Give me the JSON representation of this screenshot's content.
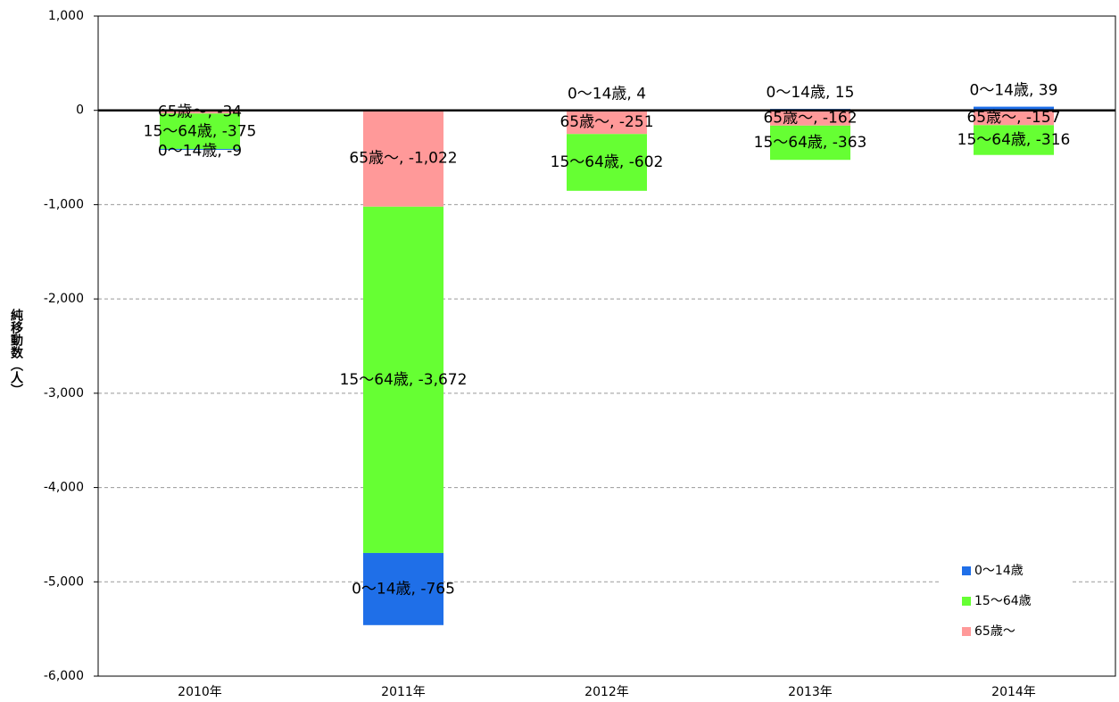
{
  "chart_data": {
    "type": "bar",
    "stacked": true,
    "y_label": "純移動数（人）",
    "categories": [
      "2010年",
      "2011年",
      "2012年",
      "2013年",
      "2014年"
    ],
    "series": [
      {
        "name": "0～14歳",
        "color": "#1f6fe8",
        "values": [
          -9,
          -765,
          4,
          15,
          39
        ],
        "value_labels": [
          "0～14歳, -9",
          "0～14歳, -765",
          "0～14歳, 4",
          "0～14歳, 15",
          "0～14歳, 39"
        ]
      },
      {
        "name": "15～64歳",
        "color": "#66ff33",
        "values": [
          -375,
          -3672,
          -602,
          -363,
          -316
        ],
        "value_labels": [
          "15～64歳, -375",
          "15～64歳, -3,672",
          "15～64歳, -602",
          "15～64歳, -363",
          "15～64歳, -316"
        ]
      },
      {
        "name": "65歳～",
        "color": "#ff9999",
        "values": [
          -34,
          -1022,
          -251,
          -162,
          -157
        ],
        "value_labels": [
          "65歳～, -34",
          "65歳～, -1,022",
          "65歳～, -251",
          "65歳～, -162",
          "65歳～, -157"
        ]
      }
    ],
    "stack_order": [
      2,
      1,
      0
    ],
    "ylim": [
      -6000,
      1000
    ],
    "yticks": [
      {
        "value": -6000,
        "label": "-6,000"
      },
      {
        "value": -5000,
        "label": "-5,000"
      },
      {
        "value": -4000,
        "label": "-4,000"
      },
      {
        "value": -3000,
        "label": "-3,000"
      },
      {
        "value": -2000,
        "label": "-2,000"
      },
      {
        "value": -1000,
        "label": "-1,000"
      },
      0,
      {
        "value": 1000,
        "label": "1,000"
      }
    ],
    "grid": true,
    "legend": "lower right"
  }
}
